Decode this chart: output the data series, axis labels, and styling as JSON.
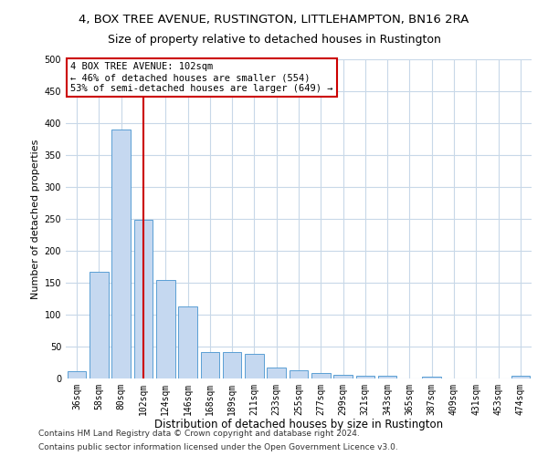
{
  "title1": "4, BOX TREE AVENUE, RUSTINGTON, LITTLEHAMPTON, BN16 2RA",
  "title2": "Size of property relative to detached houses in Rustington",
  "xlabel": "Distribution of detached houses by size in Rustington",
  "ylabel": "Number of detached properties",
  "categories": [
    "36sqm",
    "58sqm",
    "80sqm",
    "102sqm",
    "124sqm",
    "146sqm",
    "168sqm",
    "189sqm",
    "211sqm",
    "233sqm",
    "255sqm",
    "277sqm",
    "299sqm",
    "321sqm",
    "343sqm",
    "365sqm",
    "387sqm",
    "409sqm",
    "431sqm",
    "453sqm",
    "474sqm"
  ],
  "values": [
    11,
    167,
    390,
    248,
    155,
    113,
    42,
    42,
    38,
    17,
    13,
    8,
    6,
    5,
    4,
    0,
    3,
    0,
    0,
    0,
    4
  ],
  "bar_color": "#c5d8f0",
  "bar_edge_color": "#5a9fd4",
  "vline_x": 3,
  "vline_color": "#cc0000",
  "annotation_line1": "4 BOX TREE AVENUE: 102sqm",
  "annotation_line2": "← 46% of detached houses are smaller (554)",
  "annotation_line3": "53% of semi-detached houses are larger (649) →",
  "annotation_box_color": "#ffffff",
  "annotation_box_edge": "#cc0000",
  "ylim": [
    0,
    500
  ],
  "yticks": [
    0,
    50,
    100,
    150,
    200,
    250,
    300,
    350,
    400,
    450,
    500
  ],
  "footer1": "Contains HM Land Registry data © Crown copyright and database right 2024.",
  "footer2": "Contains public sector information licensed under the Open Government Licence v3.0.",
  "bg_color": "#ffffff",
  "grid_color": "#c8d8e8",
  "title1_fontsize": 9.5,
  "title2_fontsize": 9,
  "xlabel_fontsize": 8.5,
  "ylabel_fontsize": 8,
  "tick_fontsize": 7,
  "annotation_fontsize": 7.5,
  "footer_fontsize": 6.5
}
